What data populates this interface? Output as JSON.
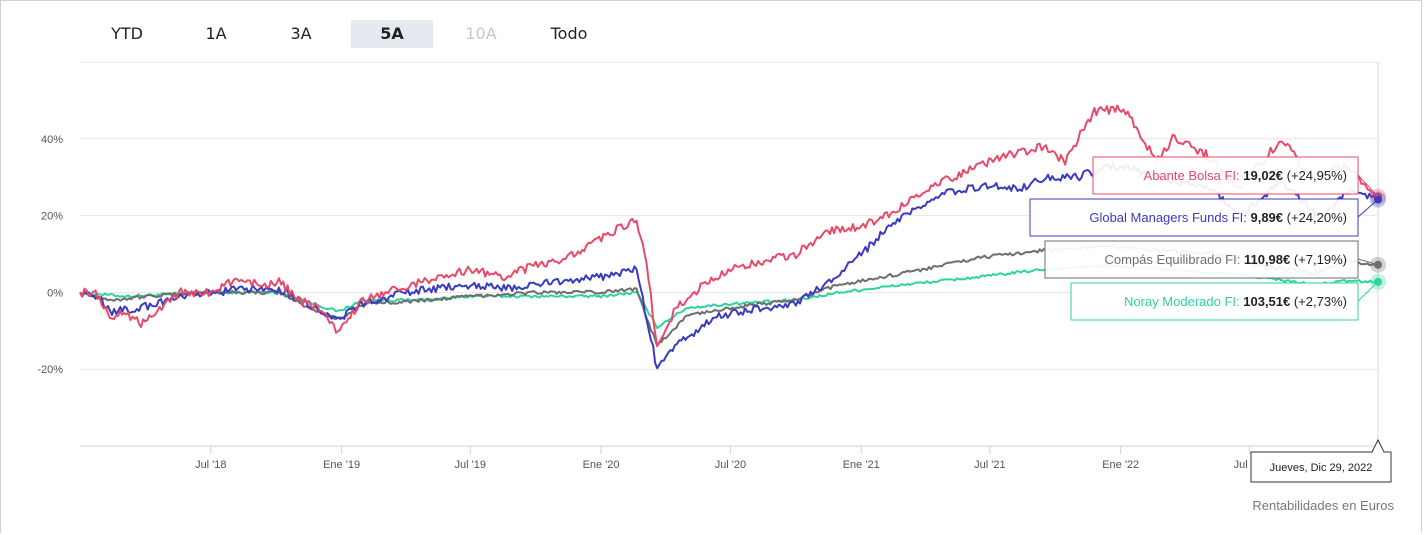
{
  "range_buttons": [
    {
      "label": "YTD",
      "state": "normal"
    },
    {
      "label": "1A",
      "state": "normal"
    },
    {
      "label": "3A",
      "state": "normal"
    },
    {
      "label": "5A",
      "state": "active"
    },
    {
      "label": "10A",
      "state": "disabled"
    },
    {
      "label": "Todo",
      "state": "normal"
    }
  ],
  "footer_note": "Rentabilidades en Euros",
  "tooltip_date": "Jueves, Dic 29, 2022",
  "colors": {
    "abante": "#e84a6a",
    "global": "#3b3bbf",
    "compas": "#6e6e6e",
    "noray": "#2ed3a0",
    "grid": "#e6e6e6",
    "axis": "#c7d3e6"
  },
  "chart_data": {
    "type": "line",
    "x_unit": "date",
    "x_range": [
      "2017-12-29",
      "2022-12-29"
    ],
    "y_unit": "%",
    "ylim": [
      -40,
      60
    ],
    "yticks": [
      {
        "value": -20,
        "label": "-20%"
      },
      {
        "value": 0,
        "label": "0%"
      },
      {
        "value": 20,
        "label": "20%"
      },
      {
        "value": 40,
        "label": "40%"
      }
    ],
    "xticks": [
      {
        "date": "2018-07-01",
        "label": "Jul '18"
      },
      {
        "date": "2019-01-01",
        "label": "Ene '19"
      },
      {
        "date": "2019-07-01",
        "label": "Jul '19"
      },
      {
        "date": "2020-01-01",
        "label": "Ene '20"
      },
      {
        "date": "2020-07-01",
        "label": "Jul '20"
      },
      {
        "date": "2021-01-01",
        "label": "Ene '21"
      },
      {
        "date": "2021-07-01",
        "label": "Jul '21"
      },
      {
        "date": "2022-01-01",
        "label": "Ene '22"
      },
      {
        "date": "2022-07-01",
        "label": "Jul '22"
      }
    ],
    "grid": true,
    "series": [
      {
        "key": "abante",
        "name": "Abante Bolsa FI",
        "label_price": "19,02€",
        "label_change": "(+24,95%)",
        "points": [
          [
            "2017-12-29",
            0
          ],
          [
            "2018-01-20",
            0
          ],
          [
            "2018-02-12",
            -7
          ],
          [
            "2018-03-01",
            -5
          ],
          [
            "2018-03-25",
            -8
          ],
          [
            "2018-04-20",
            -4
          ],
          [
            "2018-05-20",
            0
          ],
          [
            "2018-07-01",
            0
          ],
          [
            "2018-08-01",
            3
          ],
          [
            "2018-09-15",
            2
          ],
          [
            "2018-10-05",
            3
          ],
          [
            "2018-11-01",
            -2
          ],
          [
            "2018-12-01",
            -4
          ],
          [
            "2018-12-27",
            -11
          ],
          [
            "2019-01-25",
            -3
          ],
          [
            "2019-03-01",
            0
          ],
          [
            "2019-05-01",
            3
          ],
          [
            "2019-07-01",
            6
          ],
          [
            "2019-08-15",
            4
          ],
          [
            "2019-10-01",
            7
          ],
          [
            "2019-11-15",
            9
          ],
          [
            "2019-12-20",
            13
          ],
          [
            "2020-01-20",
            16
          ],
          [
            "2020-02-20",
            19
          ],
          [
            "2020-03-05",
            8
          ],
          [
            "2020-03-20",
            -15
          ],
          [
            "2020-04-15",
            -4
          ],
          [
            "2020-06-01",
            3
          ],
          [
            "2020-07-01",
            6
          ],
          [
            "2020-08-15",
            8
          ],
          [
            "2020-10-01",
            10
          ],
          [
            "2020-11-15",
            16
          ],
          [
            "2021-01-01",
            17
          ],
          [
            "2021-02-15",
            21
          ],
          [
            "2021-04-15",
            28
          ],
          [
            "2021-06-15",
            33
          ],
          [
            "2021-08-01",
            36
          ],
          [
            "2021-09-15",
            38
          ],
          [
            "2021-10-15",
            34
          ],
          [
            "2021-11-05",
            41
          ],
          [
            "2021-11-25",
            47
          ],
          [
            "2022-01-05",
            48
          ],
          [
            "2022-02-01",
            40
          ],
          [
            "2022-02-20",
            34
          ],
          [
            "2022-03-15",
            40
          ],
          [
            "2022-05-01",
            36
          ],
          [
            "2022-06-15",
            27
          ],
          [
            "2022-08-15",
            40
          ],
          [
            "2022-09-25",
            30
          ],
          [
            "2022-11-15",
            33
          ],
          [
            "2022-12-29",
            24.95
          ]
        ]
      },
      {
        "key": "global",
        "name": "Global Managers Funds FI",
        "label_price": "9,89€",
        "label_change": "(+24,20%)",
        "points": [
          [
            "2017-12-29",
            0
          ],
          [
            "2018-01-20",
            -1
          ],
          [
            "2018-02-12",
            -5
          ],
          [
            "2018-03-25",
            -4
          ],
          [
            "2018-05-01",
            -2
          ],
          [
            "2018-07-01",
            0
          ],
          [
            "2018-09-01",
            1
          ],
          [
            "2018-10-05",
            1
          ],
          [
            "2018-11-15",
            -3
          ],
          [
            "2018-12-27",
            -7
          ],
          [
            "2019-02-01",
            -3
          ],
          [
            "2019-04-01",
            0
          ],
          [
            "2019-07-01",
            2
          ],
          [
            "2019-09-01",
            1
          ],
          [
            "2019-11-01",
            3
          ],
          [
            "2020-01-01",
            4
          ],
          [
            "2020-02-20",
            6
          ],
          [
            "2020-03-20",
            -20
          ],
          [
            "2020-04-20",
            -13
          ],
          [
            "2020-06-15",
            -6
          ],
          [
            "2020-08-15",
            -4
          ],
          [
            "2020-10-01",
            -3
          ],
          [
            "2020-11-20",
            3
          ],
          [
            "2021-01-01",
            10
          ],
          [
            "2021-02-15",
            18
          ],
          [
            "2021-05-01",
            26
          ],
          [
            "2021-07-01",
            28
          ],
          [
            "2021-08-15",
            27
          ],
          [
            "2021-09-15",
            30
          ],
          [
            "2021-11-01",
            30
          ],
          [
            "2021-12-15",
            33
          ],
          [
            "2022-01-20",
            32
          ],
          [
            "2022-03-10",
            29
          ],
          [
            "2022-05-01",
            28
          ],
          [
            "2022-06-20",
            20
          ],
          [
            "2022-08-15",
            29
          ],
          [
            "2022-10-10",
            19
          ],
          [
            "2022-11-20",
            27
          ],
          [
            "2022-12-29",
            24.2
          ]
        ]
      },
      {
        "key": "compas",
        "name": "Compás Equilibrado FI",
        "label_price": "110,98€",
        "label_change": "(+7,19%)",
        "points": [
          [
            "2017-12-29",
            0
          ],
          [
            "2018-02-12",
            -2
          ],
          [
            "2018-04-01",
            -1
          ],
          [
            "2018-07-01",
            0
          ],
          [
            "2018-10-05",
            0
          ],
          [
            "2018-11-15",
            -4
          ],
          [
            "2018-12-27",
            -7
          ],
          [
            "2019-02-01",
            -3
          ],
          [
            "2019-05-01",
            -2
          ],
          [
            "2019-07-01",
            -1
          ],
          [
            "2019-10-01",
            0
          ],
          [
            "2020-01-01",
            0
          ],
          [
            "2020-02-20",
            1
          ],
          [
            "2020-03-20",
            -14
          ],
          [
            "2020-05-01",
            -6
          ],
          [
            "2020-07-01",
            -4
          ],
          [
            "2020-10-01",
            -2
          ],
          [
            "2020-12-01",
            2
          ],
          [
            "2021-03-01",
            5
          ],
          [
            "2021-06-15",
            9
          ],
          [
            "2021-09-15",
            11
          ],
          [
            "2021-12-15",
            12
          ],
          [
            "2022-03-01",
            11
          ],
          [
            "2022-05-15",
            10
          ],
          [
            "2022-07-15",
            7
          ],
          [
            "2022-09-30",
            5
          ],
          [
            "2022-11-15",
            8
          ],
          [
            "2022-12-29",
            7.19
          ]
        ]
      },
      {
        "key": "noray",
        "name": "Noray Moderado FI",
        "label_price": "103,51€",
        "label_change": "(+2,73%)",
        "points": [
          [
            "2017-12-29",
            0
          ],
          [
            "2018-03-01",
            -1
          ],
          [
            "2018-07-01",
            0
          ],
          [
            "2018-10-05",
            0
          ],
          [
            "2018-12-27",
            -5
          ],
          [
            "2019-02-01",
            -2
          ],
          [
            "2019-05-01",
            -2
          ],
          [
            "2019-07-01",
            -1
          ],
          [
            "2019-10-01",
            -1
          ],
          [
            "2020-01-01",
            -1
          ],
          [
            "2020-02-20",
            0
          ],
          [
            "2020-03-20",
            -9
          ],
          [
            "2020-05-01",
            -4
          ],
          [
            "2020-07-01",
            -3
          ],
          [
            "2020-10-01",
            -2
          ],
          [
            "2020-12-01",
            0
          ],
          [
            "2021-03-01",
            2
          ],
          [
            "2021-06-15",
            4
          ],
          [
            "2021-09-15",
            6
          ],
          [
            "2021-12-15",
            7
          ],
          [
            "2022-03-01",
            6
          ],
          [
            "2022-05-15",
            5
          ],
          [
            "2022-07-15",
            4
          ],
          [
            "2022-09-30",
            2
          ],
          [
            "2022-11-15",
            3
          ],
          [
            "2022-12-29",
            2.73
          ]
        ]
      }
    ]
  }
}
